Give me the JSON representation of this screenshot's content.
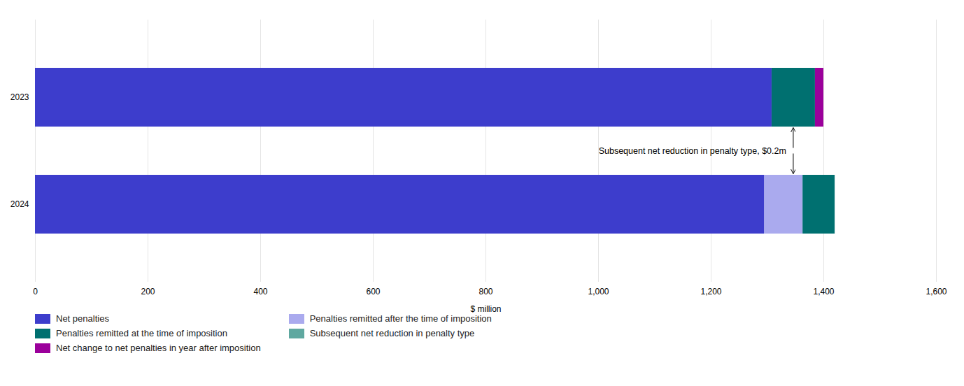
{
  "chart_data": {
    "type": "bar",
    "orientation": "horizontal",
    "stacked": true,
    "categories": [
      "2023",
      "2024"
    ],
    "series": [
      {
        "name": "Net penalties",
        "color": "#3d3dcc",
        "values": [
          1308,
          1295
        ]
      },
      {
        "name": "Penalties remitted after the time of imposition",
        "color": "#aaaaee",
        "values": [
          null,
          68
        ]
      },
      {
        "name": "Penalties remitted at the time of imposition",
        "color": "#007070",
        "values": [
          77,
          57
        ]
      },
      {
        "name": "Subsequent net reduction in penalty type",
        "color": "#5fa8a0",
        "values": [
          null,
          null
        ]
      },
      {
        "name": "Net change to net penalties in year after imposition",
        "color": "#9b009b",
        "values": [
          15,
          null
        ]
      }
    ],
    "xlabel": "$ million",
    "xlim": [
      0,
      1600
    ],
    "xticks": [
      0,
      200,
      400,
      600,
      800,
      {
        "value": 1000,
        "label": "1,000"
      },
      {
        "value": 1200,
        "label": "1,200"
      },
      {
        "value": 1400,
        "label": "1,400"
      },
      {
        "value": 1600,
        "label": "1,600"
      }
    ],
    "grid": true,
    "legend": "bottom",
    "annotations": [
      "Subsequent net reduction in penalty type, $0.2m"
    ]
  }
}
